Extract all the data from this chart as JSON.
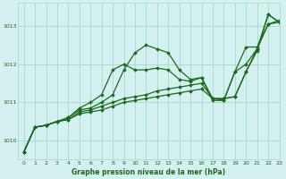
{
  "title": "Graphe pression niveau de la mer (hPa)",
  "bg_color": "#d4f0f0",
  "grid_color": "#aaddcc",
  "line_color": "#1a6b1a",
  "text_color": "#1a6b1a",
  "xlim": [
    -0.5,
    23
  ],
  "ylim": [
    1009.5,
    1013.6
  ],
  "yticks": [
    1010,
    1011,
    1012,
    1013
  ],
  "xticks": [
    0,
    1,
    2,
    3,
    4,
    5,
    6,
    7,
    8,
    9,
    10,
    11,
    12,
    13,
    14,
    15,
    16,
    17,
    18,
    19,
    20,
    21,
    22,
    23
  ],
  "series": [
    [
      1009.7,
      1010.35,
      1010.4,
      1010.5,
      1010.55,
      1010.7,
      1010.75,
      1010.8,
      1010.9,
      1011.0,
      1011.05,
      1011.1,
      1011.15,
      1011.2,
      1011.25,
      1011.3,
      1011.35,
      1011.1,
      1011.1,
      1011.15,
      1011.8,
      1012.35,
      1013.3,
      1013.1
    ],
    [
      1009.7,
      1010.35,
      1010.4,
      1010.5,
      1010.55,
      1010.75,
      1010.8,
      1010.9,
      1011.0,
      1011.1,
      1011.15,
      1011.2,
      1011.3,
      1011.35,
      1011.4,
      1011.45,
      1011.5,
      1011.1,
      1011.1,
      1011.15,
      1011.8,
      1012.4,
      1013.3,
      1013.1
    ],
    [
      1009.7,
      1010.35,
      1010.4,
      1010.5,
      1010.6,
      1010.8,
      1010.85,
      1011.0,
      1011.2,
      1011.85,
      1012.3,
      1012.5,
      1012.4,
      1012.3,
      1011.85,
      1011.6,
      1011.65,
      1011.1,
      1011.05,
      1011.8,
      1012.0,
      1012.4,
      1013.05,
      1013.1
    ],
    [
      1009.7,
      1010.35,
      1010.4,
      1010.5,
      1010.6,
      1010.85,
      1011.0,
      1011.2,
      1011.85,
      1012.0,
      1011.85,
      1011.85,
      1011.9,
      1011.85,
      1011.6,
      1011.55,
      1011.65,
      1011.05,
      1011.05,
      1011.8,
      1012.45,
      1012.45,
      1013.05,
      1013.15
    ]
  ]
}
